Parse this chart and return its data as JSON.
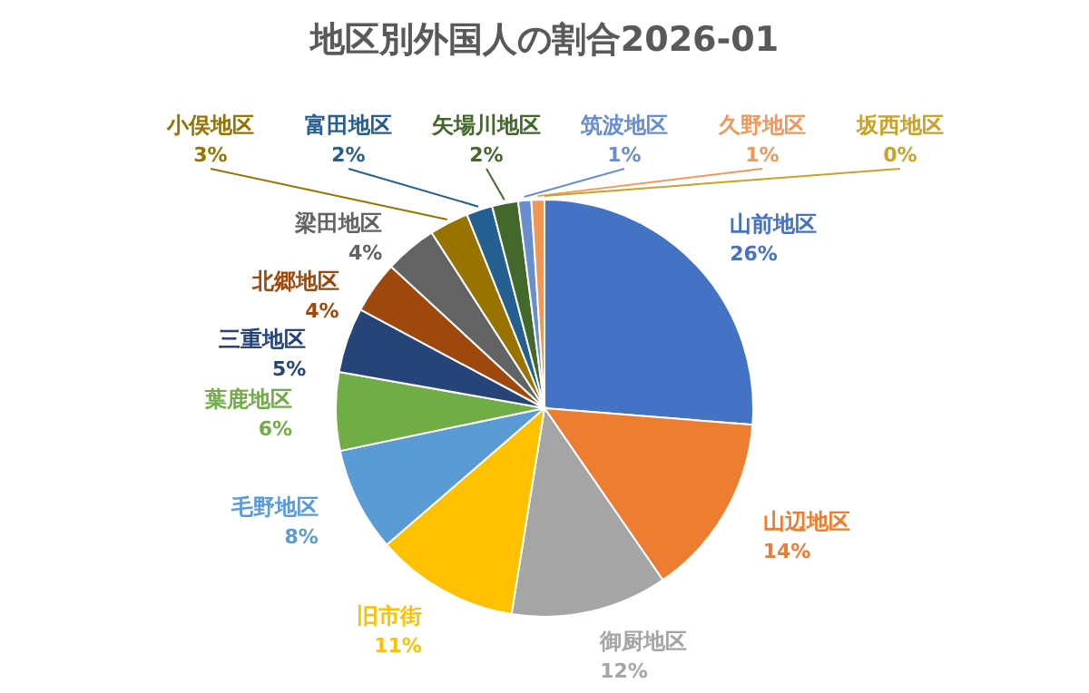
{
  "chart_data": {
    "type": "pie",
    "title": "地区別外国人の割合2026-01",
    "categories": [
      "山前地区",
      "山辺地区",
      "御厨地区",
      "旧市街",
      "毛野地区",
      "葉鹿地区",
      "三重地区",
      "北郷地区",
      "梁田地区",
      "小俣地区",
      "富田地区",
      "矢場川地区",
      "筑波地区",
      "久野地区",
      "坂西地区"
    ],
    "values": [
      26,
      14,
      12,
      11,
      8,
      6,
      5,
      4,
      4,
      3,
      2,
      2,
      1,
      1,
      0
    ],
    "value_labels": [
      "26%",
      "14%",
      "12%",
      "11%",
      "8%",
      "6%",
      "5%",
      "4%",
      "4%",
      "3%",
      "2%",
      "2%",
      "1%",
      "1%",
      "0%"
    ],
    "colors": [
      "#4472c4",
      "#ed7d31",
      "#a5a5a5",
      "#ffc000",
      "#5b9bd5",
      "#70ad47",
      "#264478",
      "#9e480e",
      "#636363",
      "#997300",
      "#255e91",
      "#43682b",
      "#698ed0",
      "#f1975a",
      "#c9a227"
    ]
  }
}
